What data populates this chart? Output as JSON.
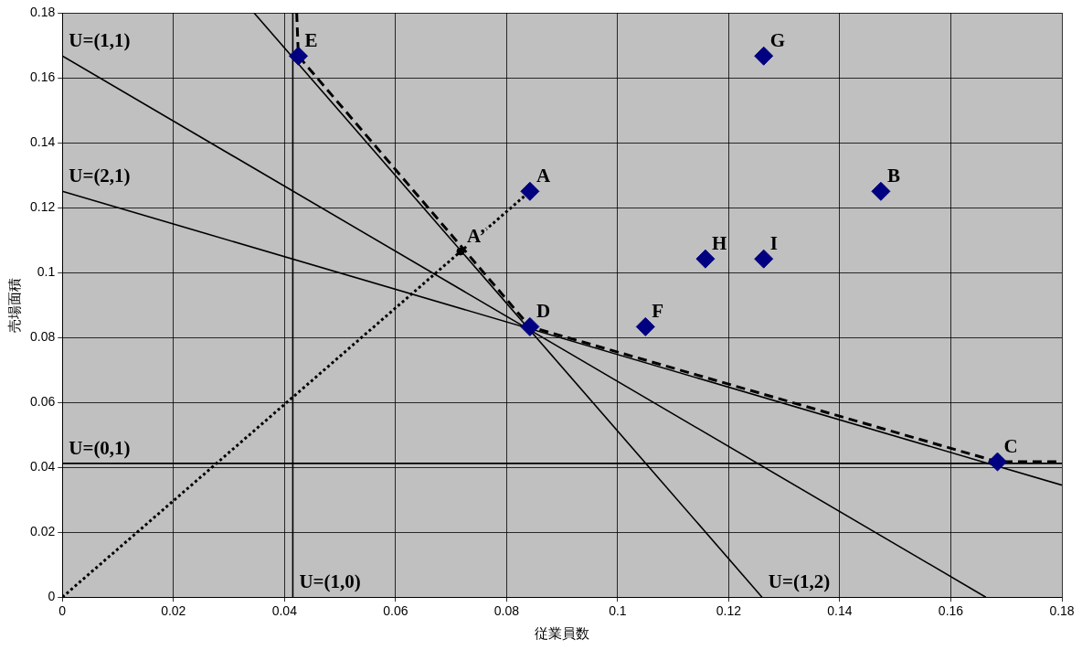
{
  "chart_data": {
    "type": "scatter",
    "xlabel": "従業員数",
    "ylabel": "売場面積",
    "xlim": [
      0,
      0.18
    ],
    "ylim": [
      0,
      0.18
    ],
    "xticks": [
      0,
      0.02,
      0.04,
      0.06,
      0.08,
      0.1,
      0.12,
      0.14,
      0.16,
      0.18
    ],
    "yticks": [
      0,
      0.02,
      0.04,
      0.06,
      0.08,
      0.1,
      0.12,
      0.14,
      0.16,
      0.18
    ],
    "grid": true,
    "legend": false,
    "series": [
      {
        "type": "scatter",
        "color": "#000080",
        "marker": "diamond",
        "x": [
          0.0425,
          0.0842,
          0.0842,
          0.105,
          0.1158,
          0.1263,
          0.1263,
          0.1474,
          0.1684
        ],
        "values": [
          0.1667,
          0.125,
          0.0833,
          0.0833,
          0.1042,
          0.1042,
          0.1667,
          0.125,
          0.0417
        ]
      },
      {
        "type": "scatter",
        "color": "#000000",
        "marker": "circle",
        "x": [
          0.0717
        ],
        "values": [
          0.1065
        ]
      },
      {
        "type": "line",
        "color": "#000000",
        "line_style": "solid",
        "x": [
          0,
          0.1663
        ],
        "values": [
          0.1667,
          0
        ]
      },
      {
        "type": "line",
        "color": "#000000",
        "line_style": "solid",
        "x": [
          0,
          0.18
        ],
        "values": [
          0.125,
          0.0345
        ]
      },
      {
        "type": "line",
        "color": "#000000",
        "line_style": "solid",
        "x": [
          0.0345,
          0.126
        ],
        "values": [
          0.18,
          0
        ]
      },
      {
        "type": "line",
        "color": "#000000",
        "line_style": "solid",
        "x": [
          0,
          0.18
        ],
        "values": [
          0.0412,
          0.0412
        ]
      },
      {
        "type": "line",
        "color": "#000000",
        "line_style": "solid",
        "x": [
          0.0415,
          0.0415
        ],
        "values": [
          0,
          0.18
        ]
      },
      {
        "type": "line",
        "color": "#000000",
        "line_style": "dashed",
        "x": [
          0.0422,
          0.0425,
          0.0842,
          0.1684,
          0.1793
        ],
        "values": [
          0.18,
          0.1667,
          0.0833,
          0.0417,
          0.0417
        ]
      },
      {
        "type": "line",
        "color": "#000000",
        "line_style": "dotted",
        "x": [
          0,
          0.0842
        ],
        "values": [
          0,
          0.125
        ]
      }
    ],
    "annotations": [
      {
        "text": "E",
        "x": 0.0425,
        "y": 0.1667
      },
      {
        "text": "G",
        "x": 0.1263,
        "y": 0.1667
      },
      {
        "text": "A",
        "x": 0.0842,
        "y": 0.125
      },
      {
        "text": "B",
        "x": 0.1474,
        "y": 0.125
      },
      {
        "text": "H",
        "x": 0.1158,
        "y": 0.1042
      },
      {
        "text": "I",
        "x": 0.1263,
        "y": 0.1042
      },
      {
        "text": "D",
        "x": 0.0842,
        "y": 0.0833
      },
      {
        "text": "F",
        "x": 0.105,
        "y": 0.0833
      },
      {
        "text": "C",
        "x": 0.1684,
        "y": 0.0417
      },
      {
        "text": "A’",
        "x": 0.0717,
        "y": 0.1065
      },
      {
        "text": "U=(1,1)",
        "x": 0,
        "y": 0.1667
      },
      {
        "text": "U=(2,1)",
        "x": 0,
        "y": 0.125
      },
      {
        "text": "U=(0,1)",
        "x": 0,
        "y": 0.0412
      },
      {
        "text": "U=(1,0)",
        "x": 0.0415,
        "y": 0
      },
      {
        "text": "U=(1,2)",
        "x": 0.126,
        "y": 0
      }
    ]
  }
}
